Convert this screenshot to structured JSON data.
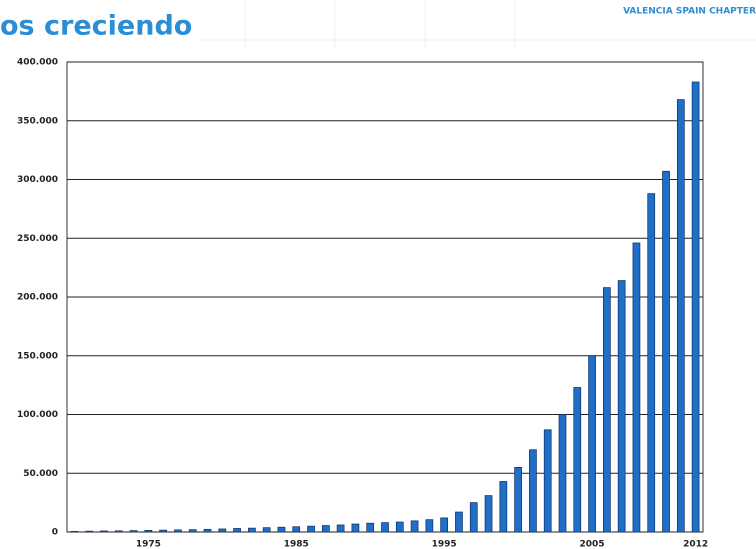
{
  "chart_data": {
    "type": "bar",
    "title": "os creciendo",
    "subtitle": "VALENCIA SPAIN CHAPTER",
    "categories": [
      null,
      null,
      null,
      null,
      null,
      "1975",
      null,
      null,
      null,
      null,
      null,
      null,
      null,
      null,
      null,
      "1985",
      null,
      null,
      null,
      null,
      null,
      null,
      null,
      null,
      null,
      "1995",
      null,
      null,
      null,
      null,
      null,
      null,
      null,
      null,
      null,
      "2005",
      null,
      null,
      null,
      null,
      null,
      null,
      "2012"
    ],
    "values": [
      500,
      700,
      900,
      1000,
      1200,
      1400,
      1600,
      1800,
      2000,
      2300,
      2600,
      3000,
      3300,
      3700,
      4100,
      4500,
      5000,
      5500,
      6000,
      6800,
      7500,
      8000,
      8500,
      9500,
      10500,
      12000,
      17000,
      25000,
      31000,
      43000,
      55000,
      70000,
      87000,
      100000,
      123000,
      150000,
      208000,
      214000,
      246000,
      288000,
      307000,
      368000,
      383000
    ],
    "color": "#1f6fc8",
    "ylim": [
      0,
      400000
    ],
    "yticks": [
      0,
      {
        "value": 50000,
        "label": "50.000"
      },
      {
        "value": 100000,
        "label": "100.000"
      },
      {
        "value": 150000,
        "label": "150.000"
      },
      {
        "value": 200000,
        "label": "200.000"
      },
      {
        "value": 250000,
        "label": "250.000"
      },
      {
        "value": 300000,
        "label": "300.000"
      },
      {
        "value": 350000,
        "label": "350.000"
      },
      {
        "value": 400000,
        "label": "400.000"
      }
    ],
    "grid": true
  }
}
